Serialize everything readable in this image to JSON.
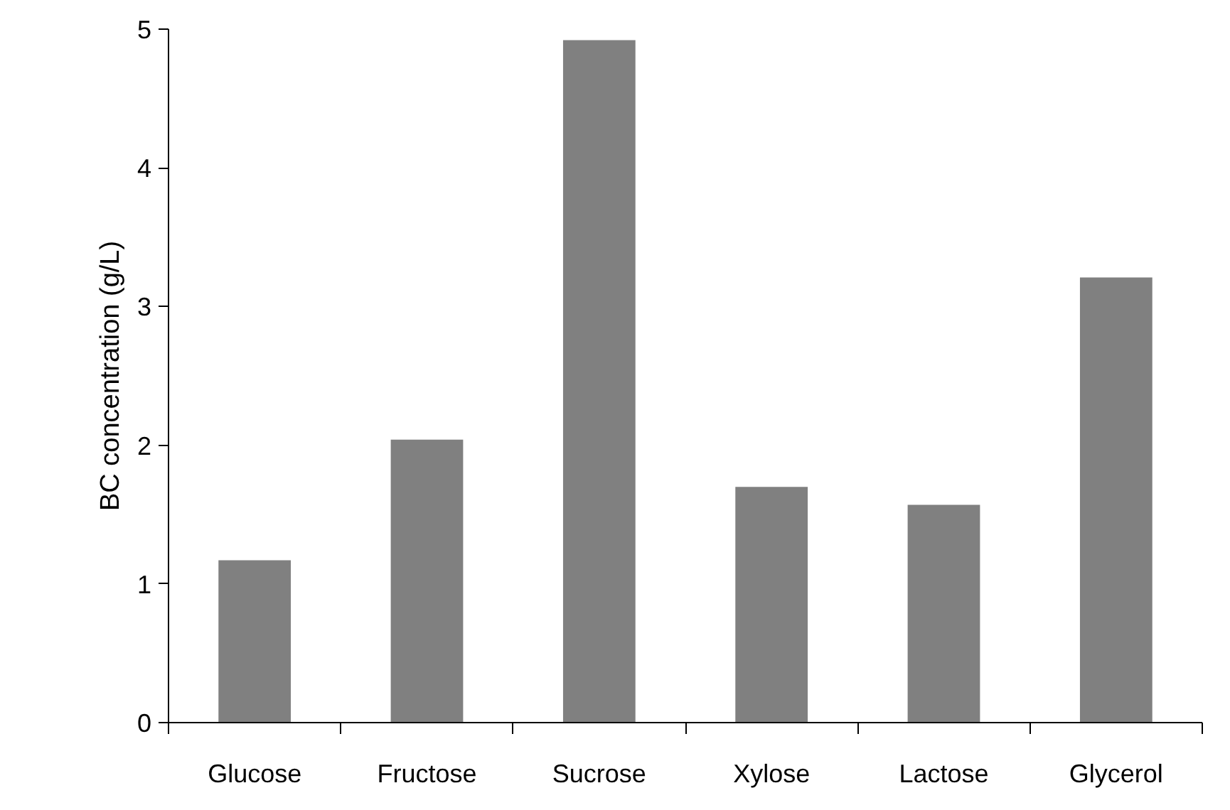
{
  "chart_data": {
    "type": "bar",
    "ylabel": "BC concentration (g/L)",
    "categories": [
      "Glucose",
      "Fructose",
      "Sucrose",
      "Xylose",
      "Lactose",
      "Glycerol"
    ],
    "values": [
      1.17,
      2.04,
      4.92,
      1.7,
      1.57,
      3.21
    ],
    "color": "#808080",
    "ylim": [
      0,
      5
    ],
    "yticks": [
      0,
      1,
      2,
      3,
      4,
      5
    ],
    "grid": false
  }
}
